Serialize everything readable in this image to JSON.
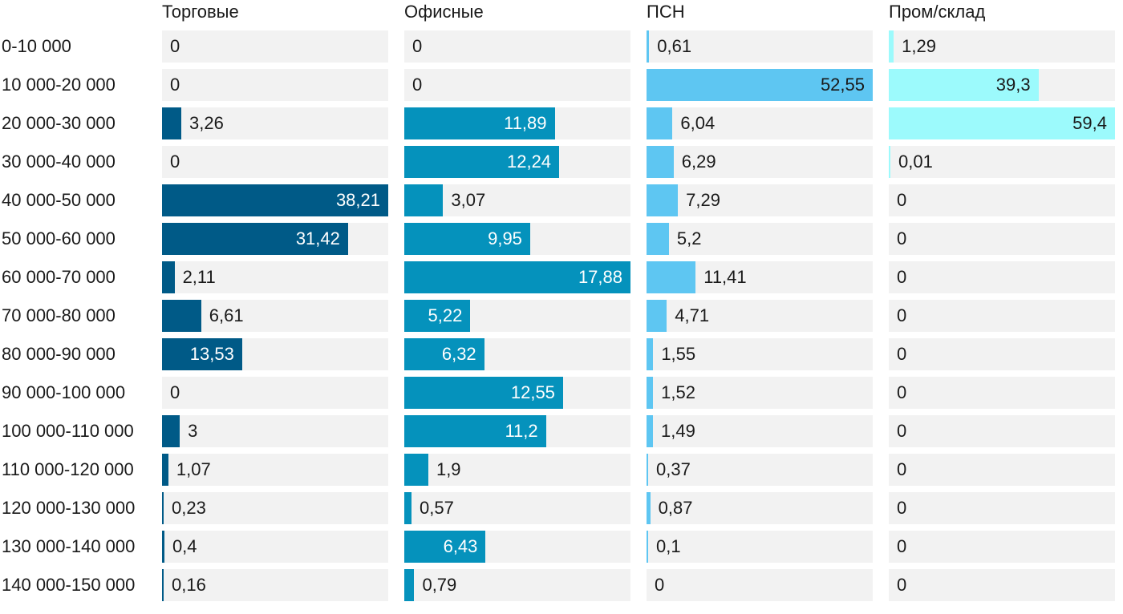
{
  "chart_data": {
    "type": "bar",
    "orientation": "horizontal",
    "layout": "small-multiples",
    "categories": [
      "0-10 000",
      "10 000-20 000",
      "20 000-30 000",
      "30 000-40 000",
      "40 000-50 000",
      "50 000-60 000",
      "60 000-70 000",
      "70 000-80 000",
      "80 000-90 000",
      "90 000-100 000",
      "100 000-110 000",
      "110 000-120 000",
      "120 000-130 000",
      "130 000-140 000",
      "140 000-150 000"
    ],
    "series": [
      {
        "name": "Торговые",
        "color": "#005a87",
        "label_color_inside": "#ffffff",
        "values": [
          0,
          0,
          3.26,
          0,
          38.21,
          31.42,
          2.11,
          6.61,
          13.53,
          0,
          3,
          1.07,
          0.23,
          0.4,
          0.16
        ],
        "labels": [
          "0",
          "0",
          "3,26",
          "0",
          "38,21",
          "31,42",
          "2,11",
          "6,61",
          "13,53",
          "0",
          "3",
          "1,07",
          "0,23",
          "0,4",
          "0,16"
        ]
      },
      {
        "name": "Офисные",
        "color": "#0592bc",
        "label_color_inside": "#ffffff",
        "values": [
          0,
          0,
          11.89,
          12.24,
          3.07,
          9.95,
          17.88,
          5.22,
          6.32,
          12.55,
          11.2,
          1.9,
          0.57,
          6.43,
          0.79
        ],
        "labels": [
          "0",
          "0",
          "11,89",
          "12,24",
          "3,07",
          "9,95",
          "17,88",
          "5,22",
          "6,32",
          "12,55",
          "11,2",
          "1,9",
          "0,57",
          "6,43",
          "0,79"
        ]
      },
      {
        "name": "ПСН",
        "color": "#5ec6f2",
        "label_color_inside": "#1a1a1a",
        "values": [
          0.61,
          52.55,
          6.04,
          6.29,
          7.29,
          5.2,
          11.41,
          4.71,
          1.55,
          1.52,
          1.49,
          0.37,
          0.87,
          0.1,
          0
        ],
        "labels": [
          "0,61",
          "52,55",
          "6,04",
          "6,29",
          "7,29",
          "5,2",
          "11,41",
          "4,71",
          "1,55",
          "1,52",
          "1,49",
          "0,37",
          "0,87",
          "0,1",
          "0"
        ]
      },
      {
        "name": "Пром/склад",
        "color": "#9cfafc",
        "label_color_inside": "#1a1a1a",
        "values": [
          1.29,
          39.3,
          59.4,
          0.01,
          0,
          0,
          0,
          0,
          0,
          0,
          0,
          0,
          0,
          0,
          0
        ],
        "labels": [
          "1,29",
          "39,3",
          "59,4",
          "0,01",
          "0",
          "0",
          "0",
          "0",
          "0",
          "0",
          "0",
          "0",
          "0",
          "0",
          "0"
        ]
      }
    ]
  }
}
